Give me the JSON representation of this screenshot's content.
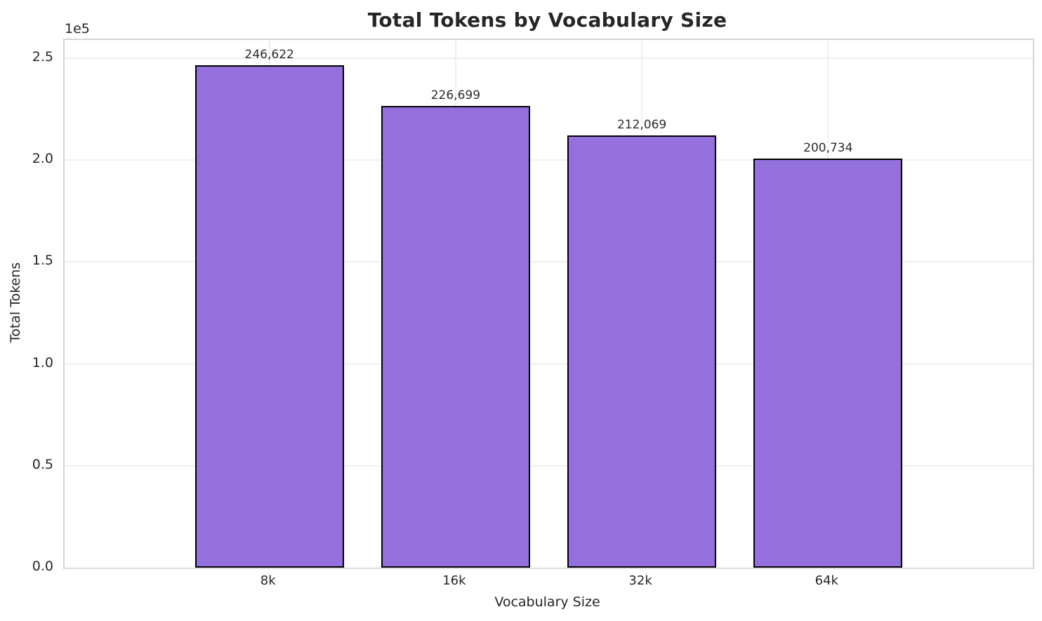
{
  "chart_data": {
    "type": "bar",
    "title": "Total Tokens by Vocabulary Size",
    "xlabel": "Vocabulary Size",
    "ylabel": "Total Tokens",
    "categories": [
      "8k",
      "16k",
      "32k",
      "64k"
    ],
    "values": [
      246622,
      226699,
      212069,
      200734
    ],
    "value_labels": [
      "246,622",
      "226,699",
      "212,069",
      "200,734"
    ],
    "ylim": [
      0,
      258953
    ],
    "y_ticks": [
      0,
      50000,
      100000,
      150000,
      200000,
      250000
    ],
    "y_tick_labels": [
      "0.0",
      "0.5",
      "1.0",
      "1.5",
      "2.0",
      "2.5"
    ],
    "offset_text": "1e5",
    "grid": true,
    "legend": null,
    "bar_color": "#9370DB",
    "bar_edge_color": "#000000",
    "grid_color": "#efefef",
    "spine_color": "#d4d4d4",
    "text_color": "#262626"
  }
}
